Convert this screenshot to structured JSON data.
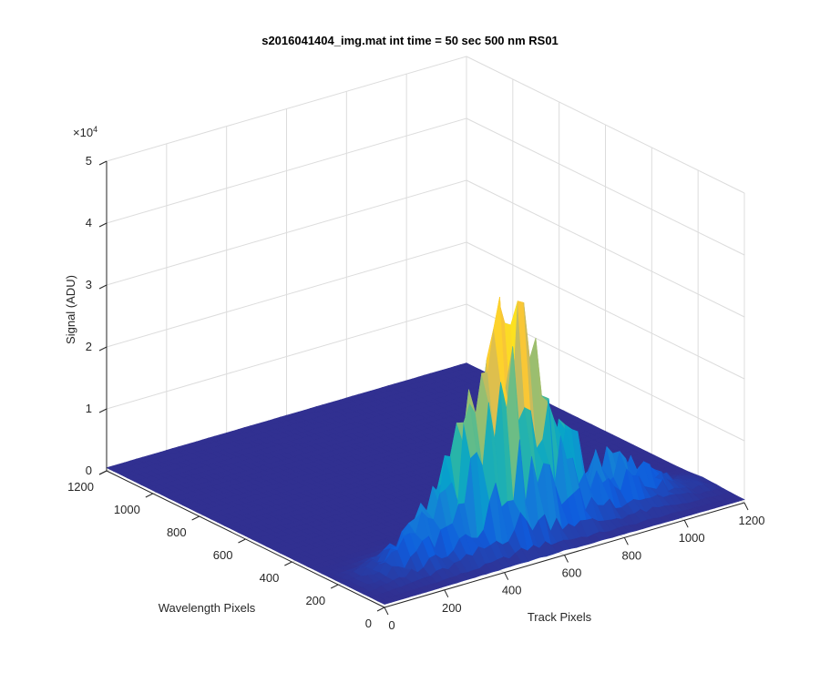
{
  "chart_data": {
    "type": "surface",
    "title": "s2016041404_img.mat int time = 50 sec  500 nm RS01",
    "xlabel": "Track Pixels",
    "ylabel": "Wavelength Pixels",
    "zlabel": "Signal (ADU)",
    "xlim": [
      0,
      1200
    ],
    "ylim": [
      0,
      1200
    ],
    "zlim": [
      0,
      50000
    ],
    "x_ticks": [
      0,
      200,
      400,
      600,
      800,
      1000,
      1200
    ],
    "y_ticks": [
      0,
      200,
      400,
      600,
      800,
      1000,
      1200
    ],
    "z_ticks": [
      0,
      1,
      2,
      3,
      4,
      5
    ],
    "z_exponent_label": "×10",
    "z_exponent_power": "4",
    "grid": true,
    "colormap": [
      "#352a87",
      "#0f5cdd",
      "#1481d6",
      "#06a4ca",
      "#2eb7a4",
      "#87bf77",
      "#d1bb59",
      "#fec832",
      "#f9fb0e"
    ],
    "surface_extent": {
      "track_min": 0,
      "track_max": 1200,
      "wavelength_min": 0,
      "wavelength_max": 1200
    },
    "background_level": 500,
    "ridge": {
      "wavelength_center": 160,
      "wavelength_width": 180,
      "profile_track": [
        0,
        100,
        200,
        300,
        400,
        500,
        600,
        700,
        800,
        900,
        1000,
        1100,
        1200
      ],
      "profile_peak": [
        500,
        2000,
        5000,
        10000,
        18000,
        32000,
        26000,
        14000,
        9000,
        7500,
        5000,
        2000,
        800
      ]
    }
  }
}
